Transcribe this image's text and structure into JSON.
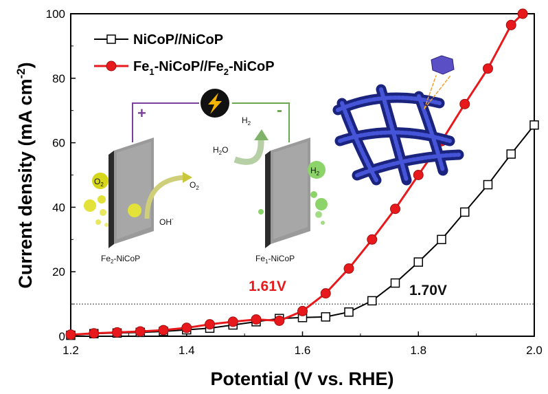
{
  "chart_data": {
    "type": "line",
    "xlabel": "Potential (V vs. RHE)",
    "ylabel": "Current density (mA cm",
    "ylabel_sup": "-2",
    "ylabel_end": ")",
    "xlim": [
      1.2,
      2.0
    ],
    "ylim": [
      0,
      100
    ],
    "xticks": [
      "1.2",
      "1.4",
      "1.6",
      "1.8",
      "2.0"
    ],
    "yticks": [
      "0",
      "20",
      "40",
      "60",
      "80",
      "100"
    ],
    "grid": false,
    "legend_position": "top-left",
    "reference_line": {
      "y": 10,
      "style": "dashed"
    },
    "series": [
      {
        "name": "NiCoP//NiCoP",
        "color": "#000000",
        "marker": "open-square",
        "x": [
          1.2,
          1.24,
          1.28,
          1.32,
          1.36,
          1.4,
          1.44,
          1.48,
          1.52,
          1.56,
          1.6,
          1.64,
          1.68,
          1.72,
          1.76,
          1.8,
          1.84,
          1.88,
          1.92,
          1.96,
          2.0
        ],
        "y": [
          0.3,
          0.8,
          1.0,
          1.2,
          1.5,
          2.0,
          2.5,
          3.5,
          4.5,
          5.5,
          5.8,
          6.0,
          7.5,
          11.0,
          16.5,
          23.0,
          30.0,
          38.5,
          47.0,
          56.5,
          65.5
        ]
      },
      {
        "name": "Fe1-NiCoP//Fe2-NiCoP",
        "color": "#e8191c",
        "marker": "filled-circle",
        "x": [
          1.2,
          1.24,
          1.28,
          1.32,
          1.36,
          1.4,
          1.44,
          1.48,
          1.52,
          1.56,
          1.6,
          1.64,
          1.68,
          1.72,
          1.76,
          1.8,
          1.84,
          1.88,
          1.92,
          1.96,
          1.98
        ],
        "y": [
          0.5,
          0.9,
          1.2,
          1.5,
          1.9,
          2.6,
          3.7,
          4.5,
          5.2,
          4.8,
          7.8,
          13.3,
          21.0,
          30.0,
          39.5,
          50.0,
          60.5,
          72.0,
          83.0,
          96.5,
          100.0
        ]
      }
    ],
    "legend": [
      {
        "label_parts": [
          "NiCoP//NiCoP"
        ]
      },
      {
        "label_parts": [
          "Fe",
          "1",
          "-NiCoP//Fe",
          "2",
          "-NiCoP"
        ]
      }
    ],
    "annotations": [
      {
        "text": "1.61V",
        "color": "#e8191c"
      },
      {
        "text": "1.70V",
        "color": "#111111"
      }
    ],
    "inset": {
      "anode_label": [
        "Fe",
        "2",
        "-NiCoP"
      ],
      "cathode_label": [
        "Fe",
        "1",
        "-NiCoP"
      ],
      "plus": "+",
      "minus": "-",
      "o2_bubble": [
        "O",
        "2"
      ],
      "o2_product": [
        "O",
        "2"
      ],
      "oh": [
        "OH",
        "-"
      ],
      "h2o": [
        "H",
        "2",
        "O"
      ],
      "h2_product": [
        "H",
        "2"
      ],
      "h2_bubble": [
        "H",
        "2"
      ]
    }
  }
}
